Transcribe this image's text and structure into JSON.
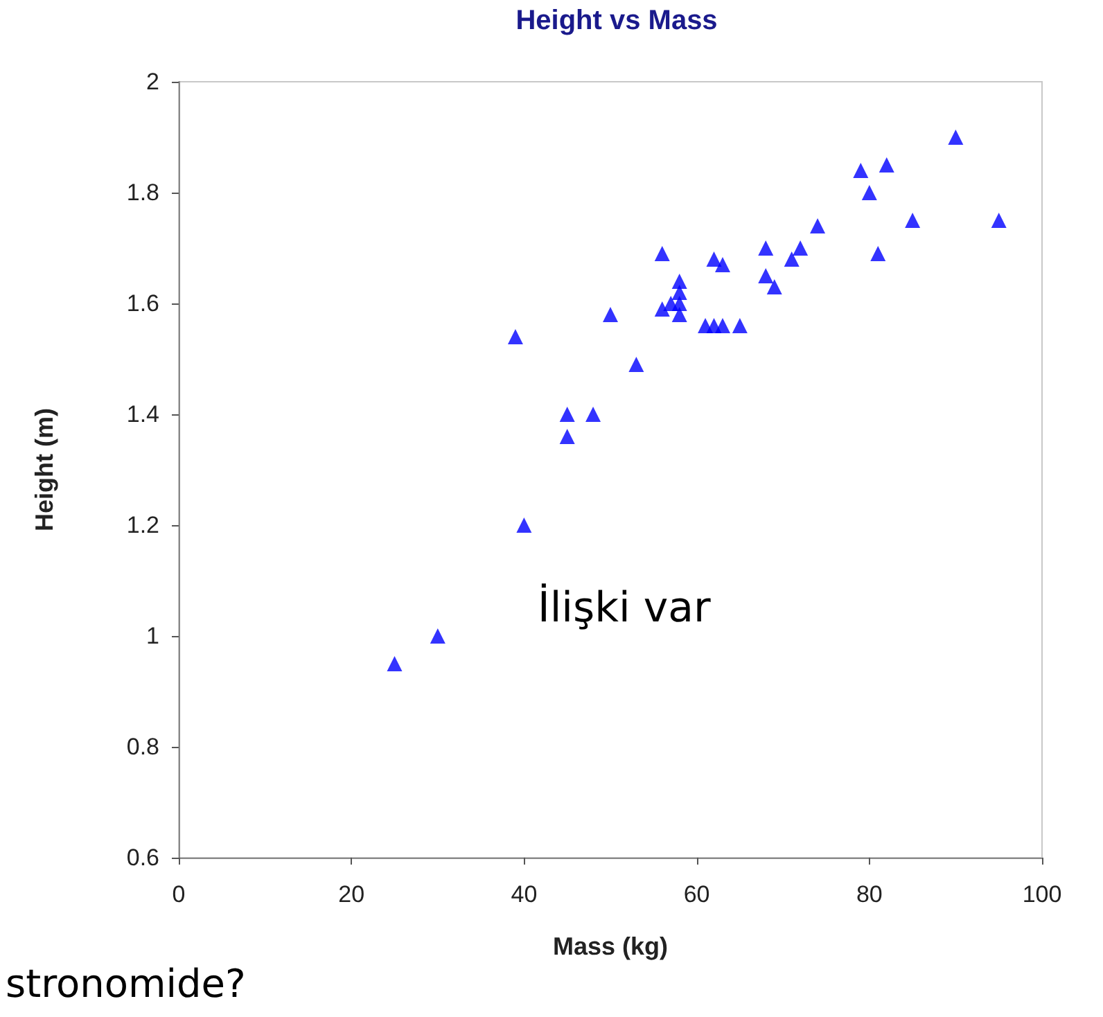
{
  "chart_data": {
    "type": "scatter",
    "title": "Height vs Mass",
    "xlabel": "Mass (kg)",
    "ylabel": "Height (m)",
    "annotations": [
      "İlişki var",
      "stronomide?"
    ],
    "x": [
      25,
      30,
      40,
      39,
      45,
      48,
      45,
      50,
      53,
      56,
      56,
      57,
      58,
      58,
      58,
      58,
      61,
      62,
      63,
      65,
      62,
      63,
      68,
      68,
      69,
      71,
      72,
      74,
      79,
      80,
      82,
      81,
      85,
      90,
      95
    ],
    "series": [
      {
        "color": "#0000ff",
        "values": [
          0.95,
          1.0,
          1.2,
          1.54,
          1.4,
          1.4,
          1.36,
          1.58,
          1.49,
          1.69,
          1.59,
          1.6,
          1.6,
          1.62,
          1.64,
          1.58,
          1.56,
          1.56,
          1.56,
          1.56,
          1.68,
          1.67,
          1.7,
          1.65,
          1.63,
          1.68,
          1.7,
          1.74,
          1.84,
          1.8,
          1.85,
          1.69,
          1.75,
          1.9,
          1.75
        ]
      }
    ],
    "xlim": [
      0,
      100
    ],
    "xticks": [
      0,
      20,
      40,
      60,
      80,
      100
    ],
    "ylim": [
      0.6,
      2
    ],
    "yticks": [
      0.6,
      0.8,
      1,
      1.2,
      1.4,
      1.6,
      1.8,
      2
    ],
    "marker": "triangle"
  }
}
